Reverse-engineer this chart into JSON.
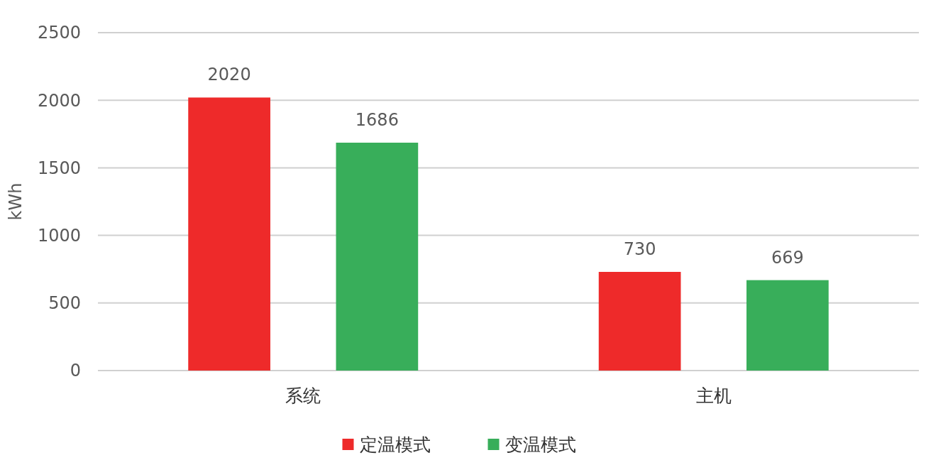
{
  "chart_data": {
    "type": "bar",
    "ylabel": "kWh",
    "categories": [
      "系统",
      "主机"
    ],
    "series": [
      {
        "name": "定温模式",
        "color": "#ee2a2a",
        "values": [
          2020,
          730
        ]
      },
      {
        "name": "变温模式",
        "color": "#38ae5a",
        "values": [
          1686,
          669
        ]
      }
    ],
    "ylim": [
      0,
      2500
    ],
    "yticks": [
      0,
      500,
      1000,
      1500,
      2000,
      2500
    ],
    "grid": "y",
    "legend": "bottom",
    "data_labels": true
  }
}
